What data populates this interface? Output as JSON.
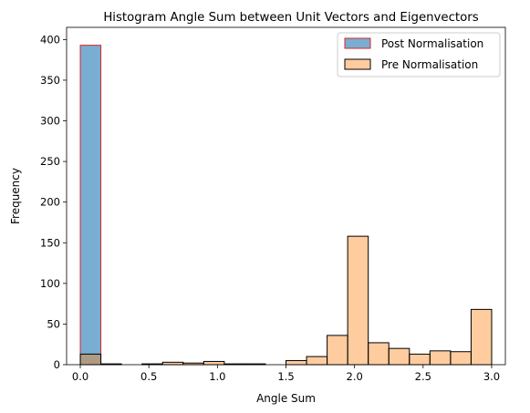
{
  "chart_data": {
    "type": "bar",
    "title": "Histogram Angle Sum between Unit Vectors and Eigenvectors",
    "xlabel": "Angle Sum",
    "ylabel": "Frequency",
    "xlim": [
      -0.1,
      3.1
    ],
    "ylim": [
      0,
      415
    ],
    "xticks": [
      0.0,
      0.5,
      1.0,
      1.5,
      2.0,
      2.5,
      3.0
    ],
    "xtick_labels": [
      "0.0",
      "0.5",
      "1.0",
      "1.5",
      "2.0",
      "2.5",
      "3.0"
    ],
    "yticks": [
      0,
      50,
      100,
      150,
      200,
      250,
      300,
      350,
      400
    ],
    "ytick_labels": [
      "0",
      "50",
      "100",
      "150",
      "200",
      "250",
      "300",
      "350",
      "400"
    ],
    "bin_edges": [
      0.0,
      0.15,
      0.3,
      0.45,
      0.6,
      0.75,
      0.9,
      1.05,
      1.2,
      1.35,
      1.5,
      1.65,
      1.8,
      1.95,
      2.1,
      2.25,
      2.4,
      2.55,
      2.7,
      2.85,
      3.0
    ],
    "grid": false,
    "legend": "top-right",
    "series": [
      {
        "name": "Post Normalisation",
        "fill": "#1f77b4",
        "edge": "#d62728",
        "opacity": 0.6,
        "values": [
          393,
          0,
          0,
          0,
          0,
          0,
          0,
          0,
          0,
          0,
          0,
          0,
          0,
          0,
          0,
          0,
          0,
          0,
          0,
          0
        ]
      },
      {
        "name": "Pre Normalisation",
        "fill": "#ff7f0e",
        "edge": "#000000",
        "opacity": 0.4,
        "values": [
          13,
          1,
          0,
          1,
          3,
          2,
          4,
          1,
          1,
          0,
          5,
          10,
          36,
          158,
          27,
          20,
          13,
          17,
          16,
          68
        ]
      }
    ]
  }
}
